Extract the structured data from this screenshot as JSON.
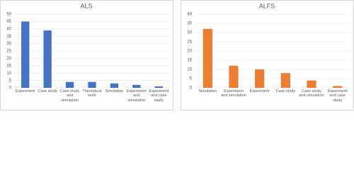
{
  "chart_data": [
    {
      "type": "bar",
      "title": "ALS",
      "categories": [
        "Experiment",
        "Case study",
        "Case study and simulation",
        "Theoretical work",
        "Simulation",
        "Experiment and simulation",
        "Experiment and case study"
      ],
      "values": [
        45,
        39,
        4,
        4,
        3,
        2,
        1
      ],
      "color": "#4472c4",
      "ylim": [
        0,
        50
      ],
      "yticks": [
        0,
        5,
        10,
        15,
        20,
        25,
        30,
        35,
        40,
        45,
        50
      ],
      "grid": true
    },
    {
      "type": "bar",
      "title": "ALFS",
      "categories": [
        "Simulation",
        "Experiment and simulation",
        "Experiment",
        "Case study",
        "Case study and simulation",
        "Experiment and case study"
      ],
      "values": [
        32,
        12,
        10,
        8,
        4,
        1
      ],
      "color": "#ed7d31",
      "ylim": [
        0,
        40
      ],
      "yticks": [
        0,
        5,
        10,
        15,
        20,
        25,
        30,
        35,
        40
      ],
      "grid": true
    }
  ]
}
